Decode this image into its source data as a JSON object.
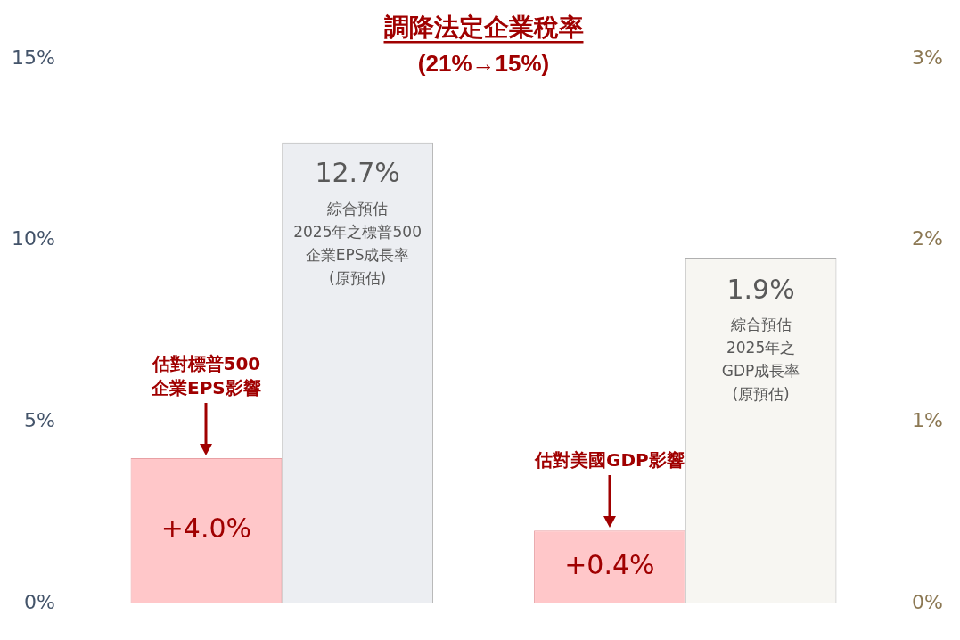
{
  "chart_data": {
    "type": "bar",
    "title": "調降法定企業稅率",
    "subtitle": "(21%→15%)",
    "categories": [
      null,
      null
    ],
    "series": [
      {
        "color": "#ffc7c9",
        "values": [
          4.0,
          null
        ],
        "value_labels": [
          "+4.0%",
          null
        ]
      },
      {
        "color": "#eceef2",
        "values": [
          12.7,
          null
        ],
        "value_labels": [
          "12.7%",
          null
        ]
      },
      {
        "color": "#ffc7c9",
        "values": [
          null,
          0.4
        ],
        "axis": "y2",
        "value_labels": [
          null,
          "+0.4%"
        ]
      },
      {
        "color": "#f7f6f2",
        "values": [
          null,
          1.9
        ],
        "axis": "y2",
        "value_labels": [
          null,
          "1.9%"
        ]
      }
    ],
    "ylim": [
      0,
      15
    ],
    "yticks": [
      {
        "value": 0,
        "label": "0%"
      },
      {
        "value": 5,
        "label": "5%"
      },
      {
        "value": 10,
        "label": "10%"
      },
      {
        "value": 15,
        "label": "15%"
      }
    ],
    "y2lim": [
      0,
      3
    ],
    "y2ticks": [
      {
        "value": 0,
        "label": "0%"
      },
      {
        "value": 1,
        "label": "1%"
      },
      {
        "value": 2,
        "label": "2%"
      },
      {
        "value": 3,
        "label": "3%"
      }
    ],
    "annotations": [
      "綜合預估\n2025年之標普500\n企業EPS成長率\n(原預估)",
      "綜合預估\n2025年之\nGDP成長率\n(原預估)",
      "估對標普500\n企業EPS影響",
      "估對美國GDP影響"
    ],
    "grid": false,
    "legend": false
  }
}
